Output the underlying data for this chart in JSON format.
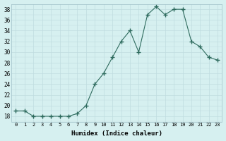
{
  "x": [
    0,
    1,
    2,
    3,
    4,
    5,
    6,
    7,
    8,
    9,
    10,
    11,
    12,
    13,
    14,
    15,
    16,
    17,
    18,
    19,
    20,
    21,
    22,
    23
  ],
  "y": [
    19,
    19,
    18,
    18,
    18,
    18,
    18,
    18.5,
    20,
    24,
    26,
    29,
    32,
    34,
    30,
    37,
    38.5,
    37,
    38,
    38,
    32,
    31,
    29,
    28.5
  ],
  "xlabel": "Humidex (Indice chaleur)",
  "ylim": [
    17,
    39
  ],
  "yticks": [
    18,
    20,
    22,
    24,
    26,
    28,
    30,
    32,
    34,
    36,
    38
  ],
  "line_color": "#2E6B5E",
  "marker": "+",
  "marker_size": 4.0,
  "bg_color": "#D6F0F0",
  "grid_color": "#C0DCE0",
  "spine_color": "#A0C0C8"
}
